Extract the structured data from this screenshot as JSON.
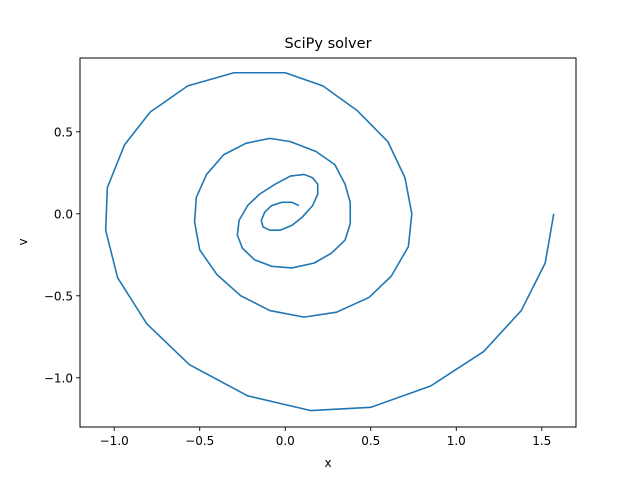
{
  "chart_data": {
    "type": "line",
    "title": "SciPy solver",
    "xlabel": "x",
    "ylabel": "v",
    "xlim": [
      -1.2,
      1.7
    ],
    "ylim": [
      -1.3,
      0.95
    ],
    "xticks": [
      -1.0,
      -0.5,
      0.0,
      0.5,
      1.0,
      1.5
    ],
    "xtick_labels": [
      "−1.0",
      "−0.5",
      "0.0",
      "0.5",
      "1.0",
      "1.5"
    ],
    "yticks": [
      -1.0,
      -0.5,
      0.0,
      0.5
    ],
    "ytick_labels": [
      "−1.0",
      "−0.5",
      "0.0",
      "0.5"
    ],
    "grid": false,
    "line_color": "#1f77b4",
    "series": [
      {
        "x": [
          1.57,
          1.52,
          1.38,
          1.16,
          0.85,
          0.5,
          0.15,
          -0.22,
          -0.56,
          -0.81,
          -0.98,
          -1.05,
          -1.04,
          -0.94,
          -0.79,
          -0.57,
          -0.3,
          0.0,
          0.22,
          0.42,
          0.6,
          0.7,
          0.74,
          0.72,
          0.62,
          0.49,
          0.3,
          0.11,
          -0.09,
          -0.26,
          -0.4,
          -0.5,
          -0.53,
          -0.52,
          -0.46,
          -0.36,
          -0.23,
          -0.09,
          0.03,
          0.18,
          0.29,
          0.35,
          0.38,
          0.38,
          0.35,
          0.27,
          0.17,
          0.04,
          -0.08,
          -0.18,
          -0.25,
          -0.28,
          -0.27,
          -0.22,
          -0.15,
          -0.06,
          0.03,
          0.11,
          0.16,
          0.19,
          0.19,
          0.16,
          0.1,
          0.04,
          -0.03,
          -0.09,
          -0.13,
          -0.14,
          -0.12,
          -0.08,
          -0.02,
          0.04,
          0.08
        ],
        "y": [
          0.0,
          -0.3,
          -0.59,
          -0.84,
          -1.05,
          -1.18,
          -1.2,
          -1.11,
          -0.92,
          -0.67,
          -0.39,
          -0.1,
          0.16,
          0.42,
          0.62,
          0.78,
          0.86,
          0.86,
          0.78,
          0.63,
          0.44,
          0.22,
          0.0,
          -0.2,
          -0.38,
          -0.51,
          -0.6,
          -0.63,
          -0.59,
          -0.5,
          -0.37,
          -0.22,
          -0.05,
          0.1,
          0.24,
          0.36,
          0.43,
          0.46,
          0.44,
          0.38,
          0.3,
          0.18,
          0.07,
          -0.06,
          -0.16,
          -0.24,
          -0.3,
          -0.33,
          -0.32,
          -0.28,
          -0.21,
          -0.13,
          -0.04,
          0.05,
          0.12,
          0.18,
          0.23,
          0.24,
          0.22,
          0.18,
          0.12,
          0.05,
          -0.02,
          -0.07,
          -0.1,
          -0.1,
          -0.08,
          -0.04,
          0.01,
          0.05,
          0.07,
          0.07,
          0.05
        ]
      }
    ]
  }
}
